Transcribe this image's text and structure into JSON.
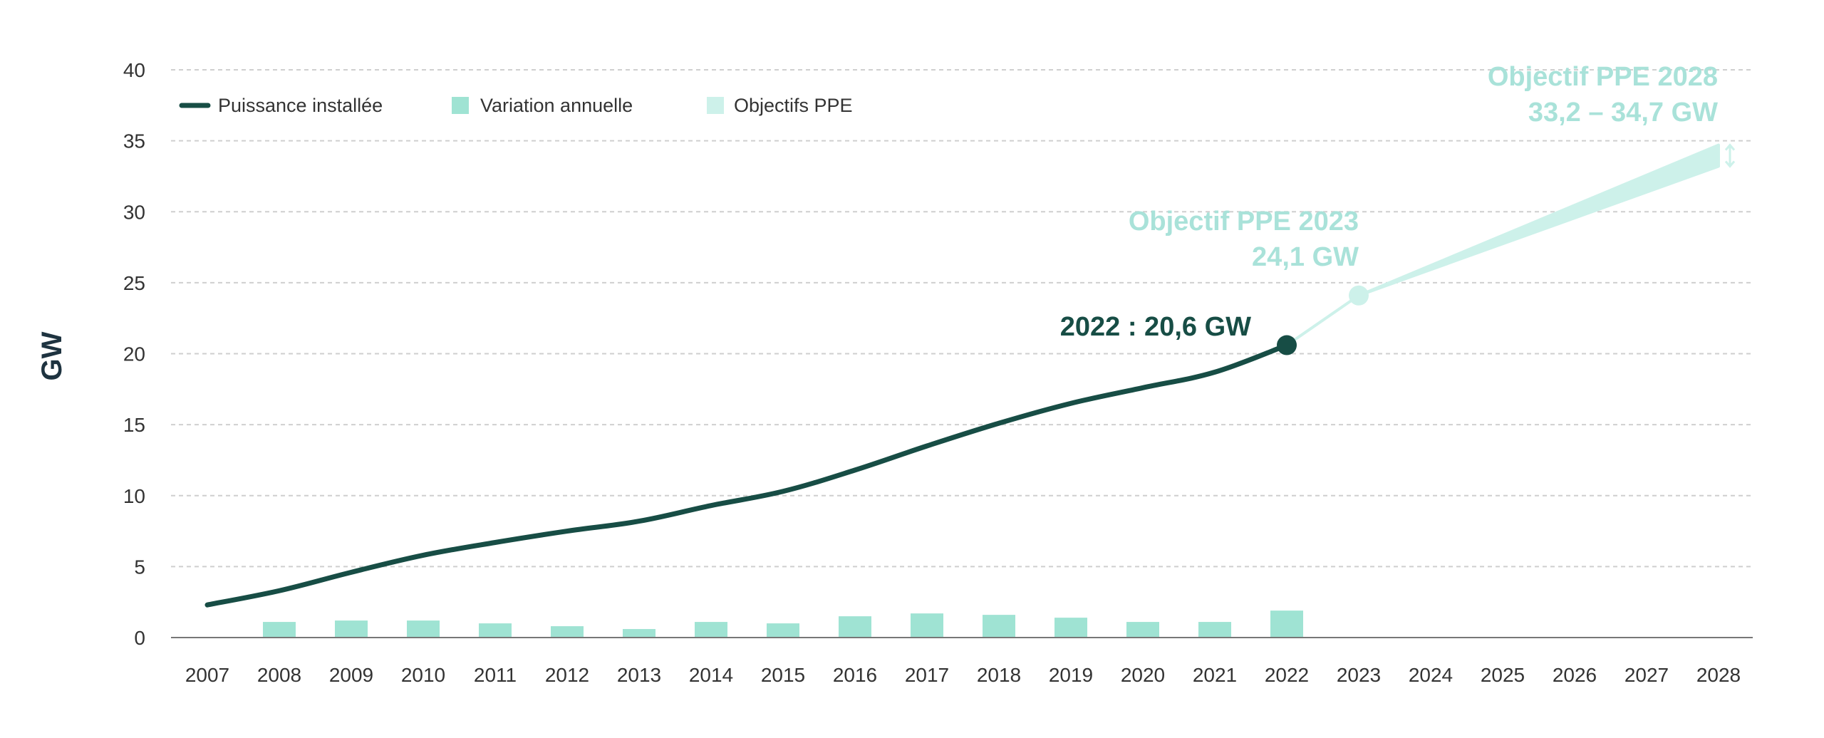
{
  "colors": {
    "line": "#174d45",
    "bar": "#9fe3d3",
    "objective": "#cdf1ea",
    "objective_text": "#a9e2d9",
    "grid": "#cfcfcf",
    "axis_text": "#333333"
  },
  "chart_data": {
    "type": "line",
    "ylabel": "GW",
    "xlabel": "",
    "ylim": [
      0,
      40
    ],
    "yticks": [
      "0",
      "5",
      "10",
      "15",
      "20",
      "25",
      "30",
      "35",
      "40"
    ],
    "categories": [
      "2007",
      "2008",
      "2009",
      "2010",
      "2011",
      "2012",
      "2013",
      "2014",
      "2015",
      "2016",
      "2017",
      "2018",
      "2019",
      "2020",
      "2021",
      "2022",
      "2023",
      "2024",
      "2025",
      "2026",
      "2027",
      "2028"
    ],
    "grid": true,
    "legend_position": "top-left",
    "legend": [
      "Puissance installée",
      "Variation annuelle",
      "Objectifs PPE"
    ],
    "series": [
      {
        "name": "Puissance installée",
        "type": "line",
        "x": [
          "2007",
          "2008",
          "2009",
          "2010",
          "2011",
          "2012",
          "2013",
          "2014",
          "2015",
          "2016",
          "2017",
          "2018",
          "2019",
          "2020",
          "2021",
          "2022"
        ],
        "values": [
          2.3,
          3.3,
          4.6,
          5.8,
          6.7,
          7.5,
          8.2,
          9.3,
          10.3,
          11.8,
          13.5,
          15.1,
          16.5,
          17.6,
          18.7,
          20.6
        ]
      },
      {
        "name": "Variation annuelle",
        "type": "bar",
        "x": [
          "2008",
          "2009",
          "2010",
          "2011",
          "2012",
          "2013",
          "2014",
          "2015",
          "2016",
          "2017",
          "2018",
          "2019",
          "2020",
          "2021",
          "2022"
        ],
        "values": [
          1.1,
          1.2,
          1.2,
          1.0,
          0.8,
          0.6,
          1.1,
          1.0,
          1.5,
          1.7,
          1.6,
          1.4,
          1.1,
          1.1,
          1.9
        ]
      },
      {
        "name": "Objectifs PPE",
        "type": "area",
        "x": [
          "2022",
          "2023",
          "2028"
        ],
        "low": [
          20.6,
          24.1,
          33.2
        ],
        "high": [
          20.6,
          24.1,
          34.7
        ]
      }
    ],
    "annotations": {
      "current": "2022 : 20,6 GW",
      "ppe2023_line1": "Objectif PPE 2023",
      "ppe2023_line2": "24,1 GW",
      "ppe2028_line1": "Objectif PPE 2028",
      "ppe2028_line2": "33,2 – 34,7 GW"
    }
  }
}
